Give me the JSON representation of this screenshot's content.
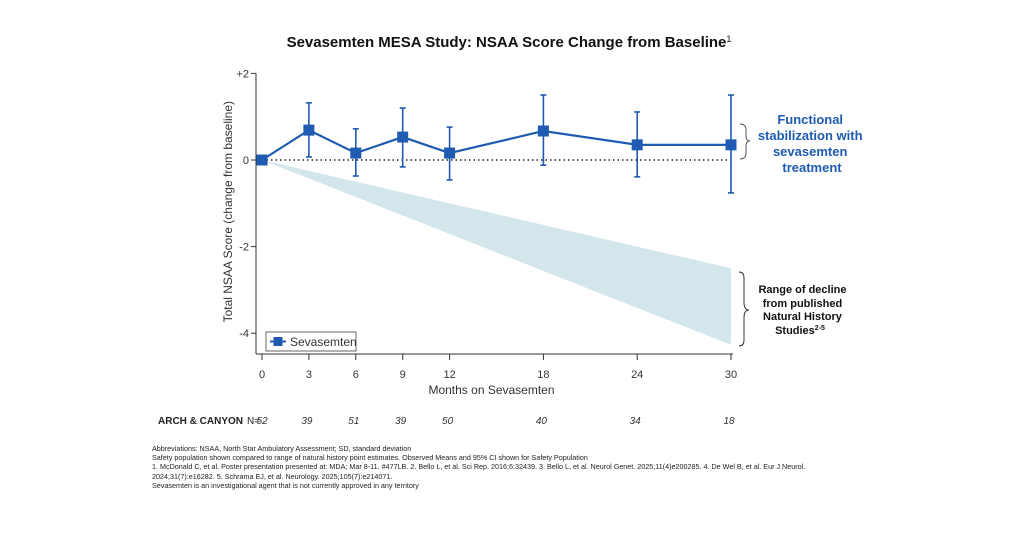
{
  "chart_data": {
    "type": "line",
    "title": "Sevasemten MESA Study: NSAA Score Change from Baseline",
    "title_superscript": "1",
    "xlabel": "Months on Sevasemten",
    "ylabel": "Total NSAA Score (change from baseline)",
    "x": [
      0,
      3,
      6,
      9,
      12,
      18,
      24,
      30
    ],
    "x_tick_labels": [
      "0",
      "3",
      "6",
      "9",
      "12",
      "18",
      "24",
      "30"
    ],
    "xlim": [
      0,
      30
    ],
    "ylim": [
      -4.5,
      2
    ],
    "y_ticks": [
      2,
      0,
      -2,
      -4
    ],
    "y_tick_labels": [
      "+2",
      "0",
      "-2",
      "-4"
    ],
    "grid": false,
    "reference_line": {
      "y": 0,
      "style": "dotted"
    },
    "series": [
      {
        "name": "Sevasemten",
        "color": "#1f5bb0",
        "marker": "square",
        "values": [
          0,
          0.69,
          0.16,
          0.53,
          0.16,
          0.67,
          0.35,
          0.35
        ],
        "ci_upper": [
          null,
          1.32,
          0.72,
          1.2,
          0.76,
          1.5,
          1.11,
          1.5
        ],
        "ci_lower": [
          null,
          0.07,
          -0.37,
          -0.16,
          -0.46,
          -0.12,
          -0.39,
          -0.76
        ]
      }
    ],
    "natural_history_band": {
      "label": "Range of decline from published Natural History Studies",
      "color": "#d3e6eb",
      "x": [
        0,
        30
      ],
      "upper": [
        0,
        -2.5
      ],
      "lower": [
        0,
        -4.27
      ]
    },
    "legend": {
      "position": "bottom-left",
      "entries": [
        "Sevasemten"
      ]
    },
    "annotations": {
      "stabilization": [
        "Functional",
        "stabilization with",
        "sevasemten",
        "treatment"
      ],
      "decline": [
        "Range of decline",
        "from published",
        "Natural History",
        "Studies"
      ],
      "decline_superscript": "2-5"
    },
    "n_row": {
      "label": "ARCH & CANYON",
      "prefix": "N=",
      "values": [
        "52",
        "39",
        "51",
        "39",
        "50",
        "40",
        "34",
        "18"
      ]
    }
  },
  "footnotes": [
    "Abbreviations: NSAA, North Star Ambulatory Assessment; SD, standard deviation",
    "Safety population shown compared to range of natural history point estimates. Observed Means and 95% CI shown for Safety Population",
    "1. McDonald C, et al. Poster presentation presented at: MDA; Mar 8-11. #477LB. 2. Bello L, et al. Sci Rep. 2016;6:32439. 3. Bello L, et al. Neurol Genet. 2025;11(4)e200285. 4. De Wel B, et al. Eur J Neurol.",
    "2024;31(7):e16282. 5. Schrama EJ, et al. Neurology. 2025;105(7):e214071.",
    "Sevasemten is an investigational agent that is not currently approved in any territory"
  ]
}
